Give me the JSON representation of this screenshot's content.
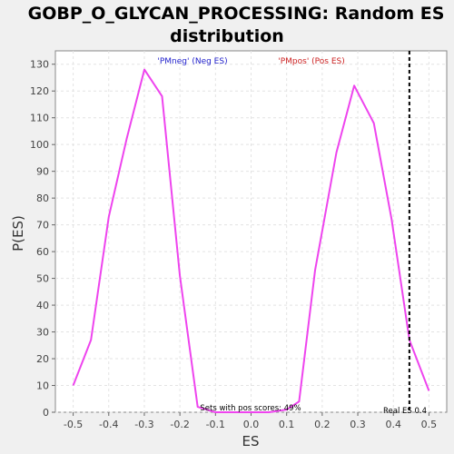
{
  "chart_data": {
    "type": "line",
    "title_line1": "GOBP_O_GLYCAN_PROCESSING: Random ES",
    "title_line2": "distribution",
    "xlabel": "ES",
    "ylabel": "P(ES)",
    "xlim": [
      -0.55,
      0.55
    ],
    "ylim": [
      0,
      135
    ],
    "x_ticks": [
      -0.5,
      -0.4,
      -0.3,
      -0.2,
      -0.1,
      0.0,
      0.1,
      0.2,
      0.3,
      0.4,
      0.5
    ],
    "x_tick_labels": [
      "-0.5",
      "-0.4",
      "-0.3",
      "-0.2",
      "-0.1",
      "0.0",
      "0.1",
      "0.2",
      "0.3",
      "0.4",
      "0.5"
    ],
    "y_ticks": [
      0,
      10,
      20,
      30,
      40,
      50,
      60,
      70,
      80,
      90,
      100,
      110,
      120,
      130
    ],
    "grid": true,
    "series": [
      {
        "color": "#ee44ee",
        "x": [
          -0.5,
          -0.45,
          -0.4,
          -0.35,
          -0.3,
          -0.25,
          -0.2,
          -0.15,
          -0.1,
          -0.05,
          0.0,
          0.05,
          0.1,
          0.135,
          0.18,
          0.24,
          0.29,
          0.345,
          0.395,
          0.445,
          0.5
        ],
        "y": [
          10,
          27,
          73,
          102,
          128,
          118,
          51,
          2,
          0,
          0,
          0,
          0,
          1,
          4,
          53,
          97,
          122,
          108,
          72,
          27,
          8
        ]
      }
    ],
    "legend": {
      "neg": {
        "text": "'PMneg' (Neg ES)",
        "color": "#2222cc"
      },
      "pos": {
        "text": "'PMpos' (Pos ES)",
        "color": "#cc2222"
      }
    },
    "real_es": {
      "value": 0.445,
      "label": "Real ES 0.4"
    },
    "annotation": "Sets with pos scores: 49%"
  }
}
